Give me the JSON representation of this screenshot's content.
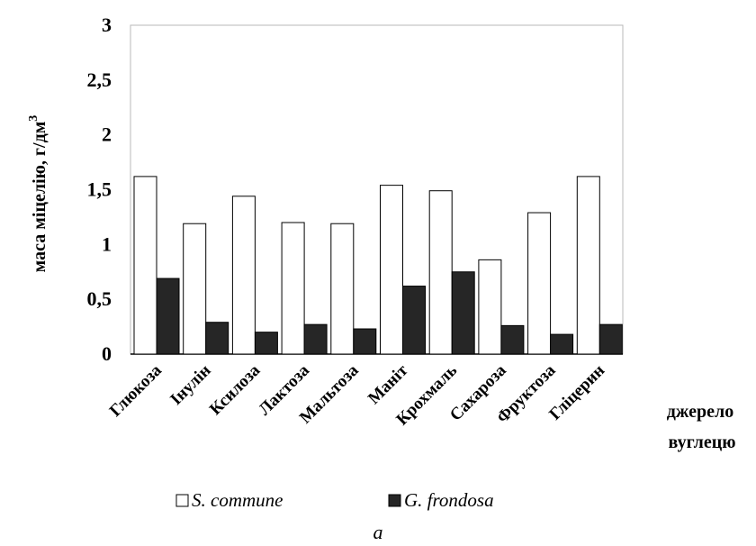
{
  "chart_data": {
    "type": "bar",
    "categories": [
      "Глюкоза",
      "Інулін",
      "Ксилоза",
      "Лактоза",
      "Мальтоза",
      "Маніт",
      "Крохмаль",
      "Сахароза",
      "Фруктоза",
      "Гліцерин"
    ],
    "series": [
      {
        "name": "S. commune",
        "color": "#ffffff",
        "values": [
          1.62,
          1.19,
          1.44,
          1.2,
          1.19,
          1.54,
          1.49,
          0.86,
          1.29,
          1.62
        ]
      },
      {
        "name": "G. frondosa",
        "color": "#262626",
        "values": [
          0.69,
          0.29,
          0.2,
          0.27,
          0.23,
          0.62,
          0.75,
          0.26,
          0.18,
          0.27
        ]
      }
    ],
    "yticks": [
      "0",
      "0,5",
      "1",
      "1,5",
      "2",
      "2,5",
      "3"
    ],
    "ylim": [
      0,
      3
    ],
    "ylabel": "маса міцелію, г/дм",
    "ylabel_sup": "3",
    "xlabel_line1": "джерело",
    "xlabel_line2": "вуглецю",
    "caption": "а",
    "grid": false,
    "legend_placement": "bottom"
  }
}
